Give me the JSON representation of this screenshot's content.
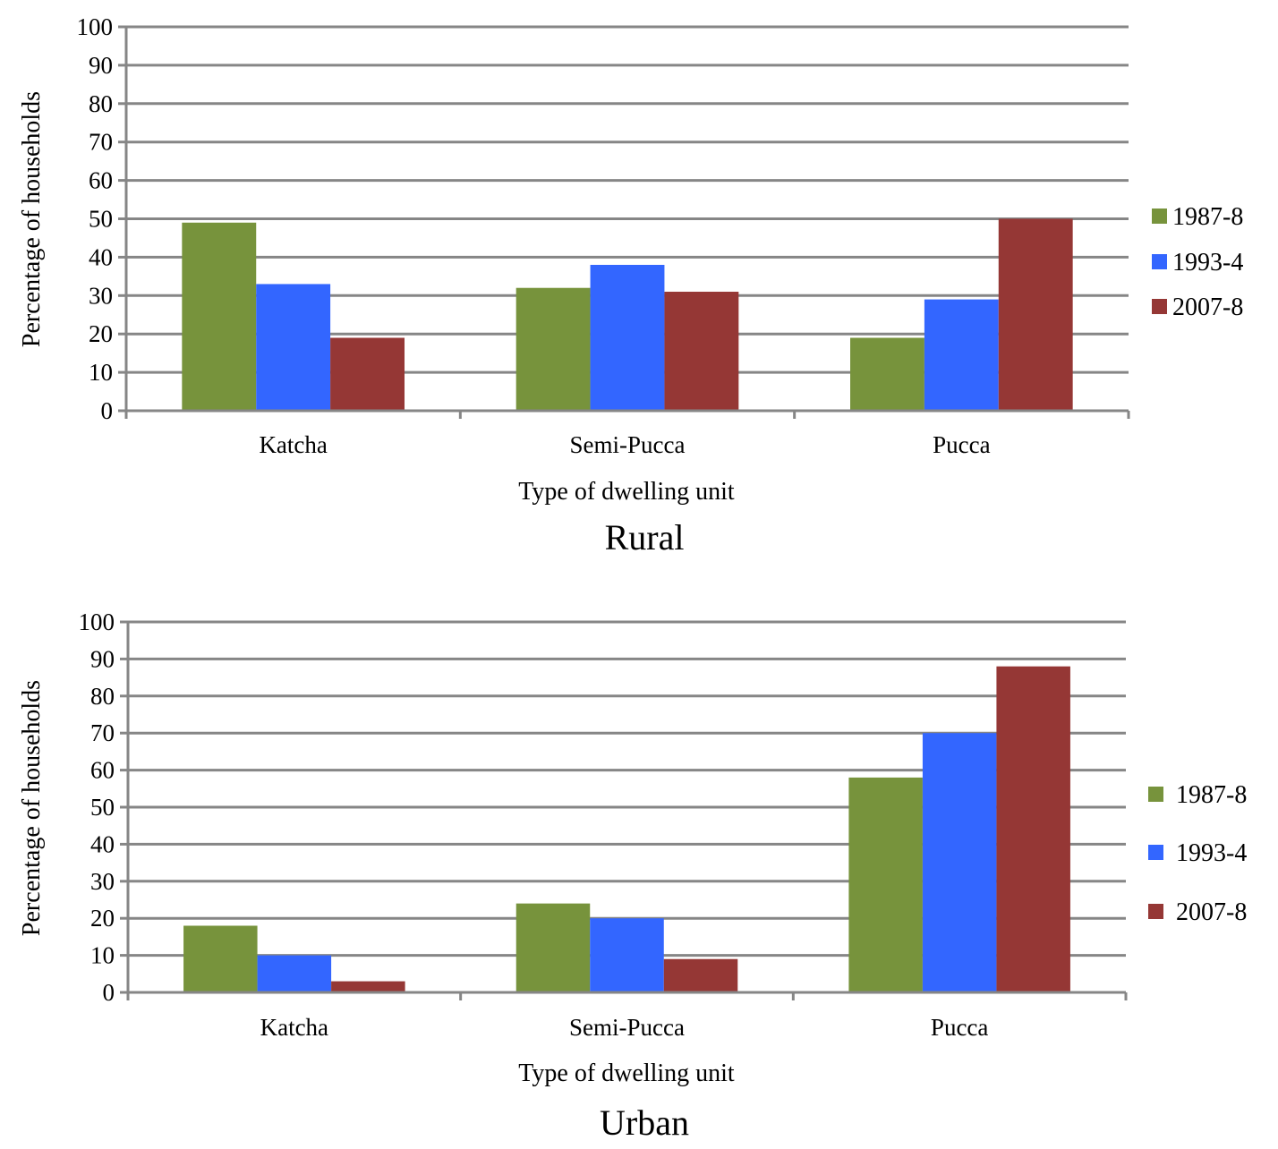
{
  "chart_data": [
    {
      "type": "bar",
      "title": "Rural",
      "xlabel": "Type of dwelling unit",
      "ylabel": "Percentage of households",
      "ylim": [
        0,
        100
      ],
      "yticks": [
        "0",
        "10",
        "20",
        "30",
        "40",
        "50",
        "60",
        "70",
        "80",
        "90",
        "100"
      ],
      "categories": [
        "Katcha",
        "Semi-Pucca",
        "Pucca"
      ],
      "series": [
        {
          "name": "1987-8",
          "color": "#77933c",
          "values": [
            49,
            32,
            19
          ]
        },
        {
          "name": "1993-4",
          "color": "#3366ff",
          "values": [
            33,
            38,
            29
          ]
        },
        {
          "name": "2007-8",
          "color": "#953735",
          "values": [
            19,
            31,
            50
          ]
        }
      ],
      "grid": true,
      "legend": "right"
    },
    {
      "type": "bar",
      "title": "Urban",
      "xlabel": "Type of dwelling unit",
      "ylabel": "Percentage of households",
      "ylim": [
        0,
        100
      ],
      "yticks": [
        "0",
        "10",
        "20",
        "30",
        "40",
        "50",
        "60",
        "70",
        "80",
        "90",
        "100"
      ],
      "categories": [
        "Katcha",
        "Semi-Pucca",
        "Pucca"
      ],
      "series": [
        {
          "name": "1987-8",
          "color": "#77933c",
          "values": [
            18,
            24,
            58
          ]
        },
        {
          "name": "1993-4",
          "color": "#3366ff",
          "values": [
            10,
            20,
            70
          ]
        },
        {
          "name": "2007-8",
          "color": "#953735",
          "values": [
            3,
            9,
            88
          ]
        }
      ],
      "grid": true,
      "legend": "right"
    }
  ]
}
